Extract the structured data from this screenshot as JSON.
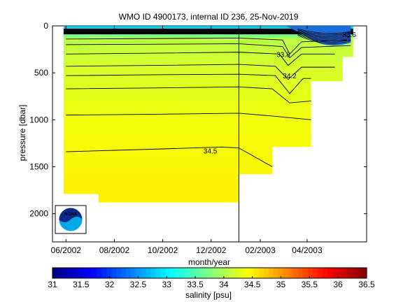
{
  "chart_data": {
    "type": "contour",
    "title": "WMO ID 4900173, internal ID 236, 25-Nov-2019",
    "xlabel": "month/year",
    "ylabel": "pressure [dbar]",
    "x_ticks": [
      "06/2002",
      "08/2002",
      "10/2002",
      "12/2002",
      "02/2003",
      "04/2003"
    ],
    "x_tick_dates": [
      "2002-06-01",
      "2002-08-01",
      "2002-10-01",
      "2002-12-01",
      "2003-02-01",
      "2003-04-01"
    ],
    "xlim": [
      "2002-05-15",
      "2003-06-15"
    ],
    "y_ticks": [
      0,
      500,
      1000,
      1500,
      2000
    ],
    "ylim": [
      2300,
      0
    ],
    "y_reversed": true,
    "vertical_marker_date": "2003-01-05",
    "colorbar": {
      "label": "salinity [psu]",
      "ticks": [
        31,
        31.5,
        32,
        32.5,
        33,
        33.5,
        34,
        34.5,
        35,
        35.5,
        36,
        36.5
      ],
      "range": [
        31,
        36.5
      ],
      "colormap": "jet"
    },
    "contour_labels": [
      {
        "text": "34.5",
        "date": "2002-11-30",
        "pressure": 1330
      },
      {
        "text": "34.2",
        "date": "2003-03-10",
        "pressure": 530
      },
      {
        "text": "33.8",
        "date": "2003-03-02",
        "pressure": 300
      },
      {
        "text": "33.6",
        "date": "2003-05-24",
        "pressure": 90
      }
    ],
    "profiles": [
      {
        "date": "2002-06-01",
        "max_pressure": 1790
      },
      {
        "date": "2002-07-12",
        "max_pressure": 1880
      },
      {
        "date": "2002-11-05",
        "max_pressure": 1880
      },
      {
        "date": "2002-12-15",
        "max_pressure": 1880
      },
      {
        "date": "2003-01-05",
        "max_pressure": 1580
      },
      {
        "date": "2003-02-16",
        "max_pressure": 1290
      },
      {
        "date": "2003-03-27",
        "max_pressure": 1290
      },
      {
        "date": "2003-04-06",
        "max_pressure": 590
      },
      {
        "date": "2003-05-06",
        "max_pressure": 590
      },
      {
        "date": "2003-05-16",
        "max_pressure": 330
      },
      {
        "date": "2003-05-26",
        "max_pressure": 330
      }
    ],
    "isohalines": [
      {
        "value": 33.8,
        "points": [
          [
            "2002-06-01",
            140
          ],
          [
            "2002-10-01",
            135
          ],
          [
            "2003-01-05",
            130
          ],
          [
            "2003-03-01",
            150
          ],
          [
            "2003-03-10",
            300
          ],
          [
            "2003-03-25",
            170
          ],
          [
            "2003-05-26",
            150
          ]
        ]
      },
      {
        "value": 33.9,
        "points": [
          [
            "2002-06-01",
            200
          ],
          [
            "2002-10-01",
            195
          ],
          [
            "2003-01-05",
            190
          ],
          [
            "2003-03-01",
            220
          ],
          [
            "2003-03-10",
            340
          ],
          [
            "2003-03-25",
            230
          ],
          [
            "2003-05-26",
            210
          ]
        ]
      },
      {
        "value": 34.0,
        "points": [
          [
            "2002-06-01",
            300
          ],
          [
            "2002-10-01",
            290
          ],
          [
            "2003-01-05",
            280
          ],
          [
            "2003-02-25",
            300
          ],
          [
            "2003-03-08",
            420
          ],
          [
            "2003-03-25",
            300
          ],
          [
            "2003-05-06",
            300
          ]
        ]
      },
      {
        "value": 34.1,
        "points": [
          [
            "2002-06-01",
            430
          ],
          [
            "2002-10-01",
            420
          ],
          [
            "2003-01-05",
            410
          ],
          [
            "2003-02-20",
            430
          ],
          [
            "2003-03-08",
            570
          ],
          [
            "2003-03-25",
            440
          ],
          [
            "2003-05-06",
            440
          ]
        ]
      },
      {
        "value": 34.2,
        "points": [
          [
            "2002-06-01",
            530
          ],
          [
            "2002-10-01",
            520
          ],
          [
            "2003-01-05",
            515
          ],
          [
            "2003-02-20",
            530
          ],
          [
            "2003-03-10",
            720
          ],
          [
            "2003-03-27",
            560
          ],
          [
            "2003-04-06",
            560
          ]
        ]
      },
      {
        "value": 34.3,
        "points": [
          [
            "2002-06-01",
            670
          ],
          [
            "2002-10-01",
            660
          ],
          [
            "2003-01-05",
            650
          ],
          [
            "2003-02-16",
            670
          ],
          [
            "2003-03-10",
            820
          ],
          [
            "2003-04-06",
            800
          ]
        ]
      },
      {
        "value": 34.4,
        "points": [
          [
            "2002-06-01",
            950
          ],
          [
            "2002-10-01",
            940
          ],
          [
            "2003-01-05",
            930
          ],
          [
            "2003-02-16",
            960
          ],
          [
            "2003-04-06",
            1000
          ]
        ]
      },
      {
        "value": 34.5,
        "points": [
          [
            "2002-06-01",
            1340
          ],
          [
            "2002-10-01",
            1310
          ],
          [
            "2002-12-15",
            1290
          ],
          [
            "2003-01-05",
            1300
          ],
          [
            "2003-02-16",
            1500
          ]
        ]
      }
    ]
  },
  "logo": {
    "text": "NOAA",
    "alt": "noaa-logo"
  }
}
